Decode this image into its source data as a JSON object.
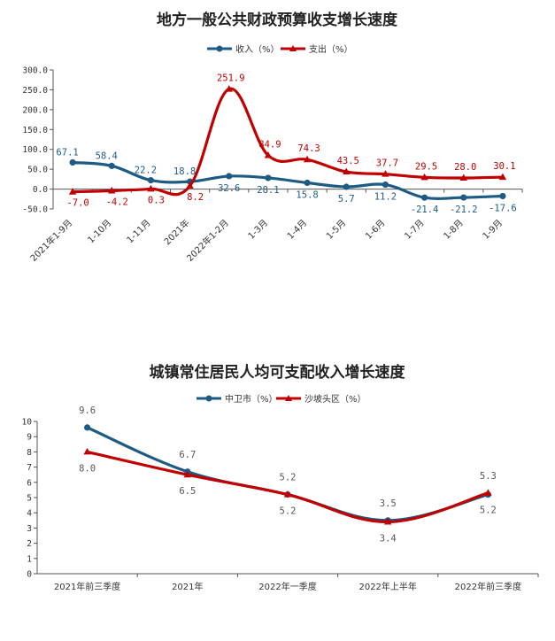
{
  "colors": {
    "blue": "#1d5b84",
    "red": "#c00000",
    "axis": "#555555"
  },
  "chart_data": [
    {
      "type": "line",
      "title": "地方一般公共财政预算收支增长速度",
      "categories": [
        "2021年1-9月",
        "1-10月",
        "1-11月",
        "2021年",
        "2022年1-2月",
        "1-3月",
        "1-4月",
        "1-5月",
        "1-6月",
        "1-7月",
        "1-8月",
        "1-9月"
      ],
      "ylim": [
        -50,
        300
      ],
      "yticks": [
        "300.0",
        "250.0",
        "200.0",
        "150.0",
        "100.0",
        "50.0",
        "0.0",
        "-50.0"
      ],
      "legend_position": "top-center",
      "series": [
        {
          "name": "收入（%）",
          "color": "#1d5b84",
          "marker": "circle",
          "values": [
            67.1,
            58.4,
            22.2,
            18.8,
            32.6,
            28.1,
            15.8,
            5.7,
            11.2,
            -21.4,
            -21.2,
            -17.6
          ]
        },
        {
          "name": "支出（%）",
          "color": "#c00000",
          "marker": "triangle",
          "values": [
            -7.0,
            -4.2,
            0.3,
            8.2,
            251.9,
            84.9,
            74.3,
            43.5,
            37.7,
            29.5,
            28.0,
            30.1
          ]
        }
      ]
    },
    {
      "type": "line",
      "title": "城镇常住居民人均可支配收入增长速度",
      "categories": [
        "2021年前三季度",
        "2021年",
        "2022年一季度",
        "2022年上半年",
        "2022年前三季度"
      ],
      "ylim": [
        0,
        10
      ],
      "yticks": [
        "10",
        "9",
        "8",
        "7",
        "6",
        "5",
        "4",
        "3",
        "2",
        "1",
        "0"
      ],
      "legend_position": "top-center",
      "series": [
        {
          "name": "中卫市（%）",
          "color": "#1d5b84",
          "marker": "circle",
          "values": [
            9.6,
            6.7,
            5.2,
            3.5,
            5.2
          ]
        },
        {
          "name": "沙坡头区（%）",
          "color": "#c00000",
          "marker": "triangle",
          "values": [
            8.0,
            6.5,
            5.2,
            3.4,
            5.3
          ]
        }
      ]
    }
  ]
}
